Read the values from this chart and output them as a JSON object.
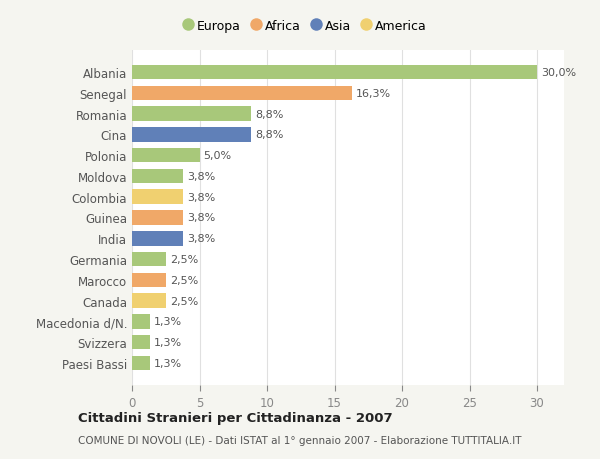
{
  "categories": [
    "Albania",
    "Senegal",
    "Romania",
    "Cina",
    "Polonia",
    "Moldova",
    "Colombia",
    "Guinea",
    "India",
    "Germania",
    "Marocco",
    "Canada",
    "Macedonia d/N.",
    "Svizzera",
    "Paesi Bassi"
  ],
  "values": [
    30.0,
    16.3,
    8.8,
    8.8,
    5.0,
    3.8,
    3.8,
    3.8,
    3.8,
    2.5,
    2.5,
    2.5,
    1.3,
    1.3,
    1.3
  ],
  "labels": [
    "30,0%",
    "16,3%",
    "8,8%",
    "8,8%",
    "5,0%",
    "3,8%",
    "3,8%",
    "3,8%",
    "3,8%",
    "2,5%",
    "2,5%",
    "2,5%",
    "1,3%",
    "1,3%",
    "1,3%"
  ],
  "colors": [
    "#a8c87a",
    "#f0a868",
    "#a8c87a",
    "#6080b8",
    "#a8c87a",
    "#a8c87a",
    "#f0d070",
    "#f0a868",
    "#6080b8",
    "#a8c87a",
    "#f0a868",
    "#f0d070",
    "#a8c87a",
    "#a8c87a",
    "#a8c87a"
  ],
  "legend_labels": [
    "Europa",
    "Africa",
    "Asia",
    "America"
  ],
  "legend_colors": [
    "#a8c87a",
    "#f0a868",
    "#6080b8",
    "#f0d070"
  ],
  "title": "Cittadini Stranieri per Cittadinanza - 2007",
  "subtitle": "COMUNE DI NOVOLI (LE) - Dati ISTAT al 1° gennaio 2007 - Elaborazione TUTTITALIA.IT",
  "xlim": [
    0,
    32
  ],
  "xticks": [
    0,
    5,
    10,
    15,
    20,
    25,
    30
  ],
  "bg_color": "#f5f5f0",
  "plot_bg_color": "#ffffff",
  "grid_color": "#e0e0e0",
  "label_color": "#555555",
  "tick_color": "#888888"
}
